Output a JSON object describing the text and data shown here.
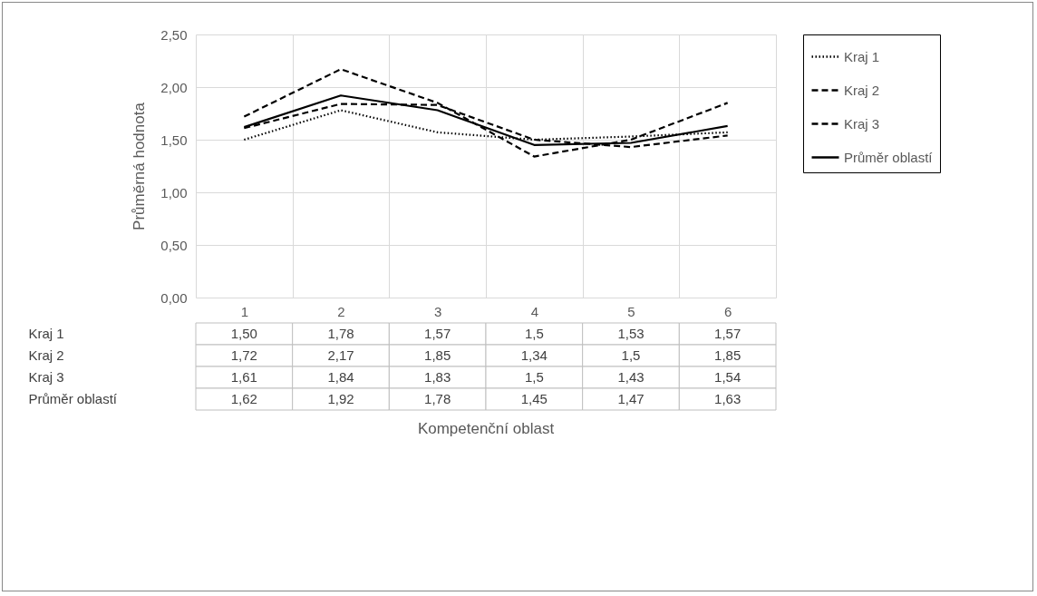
{
  "chart_data": {
    "type": "line",
    "annotations": [
      "Kompetenční oblast"
    ],
    "ylabel": "Průměrná hodnota",
    "categories": [
      "1",
      "2",
      "3",
      "4",
      "5",
      "6"
    ],
    "series": [
      {
        "name": "Kraj 1",
        "color": "#000000",
        "line_style": "dotted",
        "values": [
          1.5,
          1.78,
          1.57,
          1.5,
          1.53,
          1.57
        ],
        "value_labels": [
          "1,50",
          "1,78",
          "1,57",
          "1,5",
          "1,53",
          "1,57"
        ]
      },
      {
        "name": "Kraj 2",
        "color": "#000000",
        "line_style": "dashed",
        "values": [
          1.72,
          2.17,
          1.85,
          1.34,
          1.5,
          1.85
        ],
        "value_labels": [
          "1,72",
          "2,17",
          "1,85",
          "1,34",
          "1,5",
          "1,85"
        ]
      },
      {
        "name": "Kraj 3",
        "color": "#000000",
        "line_style": "dashed",
        "values": [
          1.61,
          1.84,
          1.83,
          1.5,
          1.43,
          1.54
        ],
        "value_labels": [
          "1,61",
          "1,84",
          "1,83",
          "1,5",
          "1,43",
          "1,54"
        ]
      },
      {
        "name": "Průměr oblastí",
        "color": "#000000",
        "line_style": "solid",
        "values": [
          1.62,
          1.92,
          1.78,
          1.45,
          1.47,
          1.63
        ],
        "value_labels": [
          "1,62",
          "1,92",
          "1,78",
          "1,45",
          "1,47",
          "1,63"
        ]
      }
    ],
    "ylim": [
      0,
      2.5
    ],
    "yticks": [
      {
        "value": 0,
        "label": "0,00"
      },
      {
        "value": 0.5,
        "label": "0,50"
      },
      {
        "value": 1,
        "label": "1,00"
      },
      {
        "value": 1.5,
        "label": "1,50"
      },
      {
        "value": 2,
        "label": "2,00"
      },
      {
        "value": 2.5,
        "label": "2,50"
      }
    ],
    "grid": true,
    "legend": "right",
    "marker": "none"
  }
}
